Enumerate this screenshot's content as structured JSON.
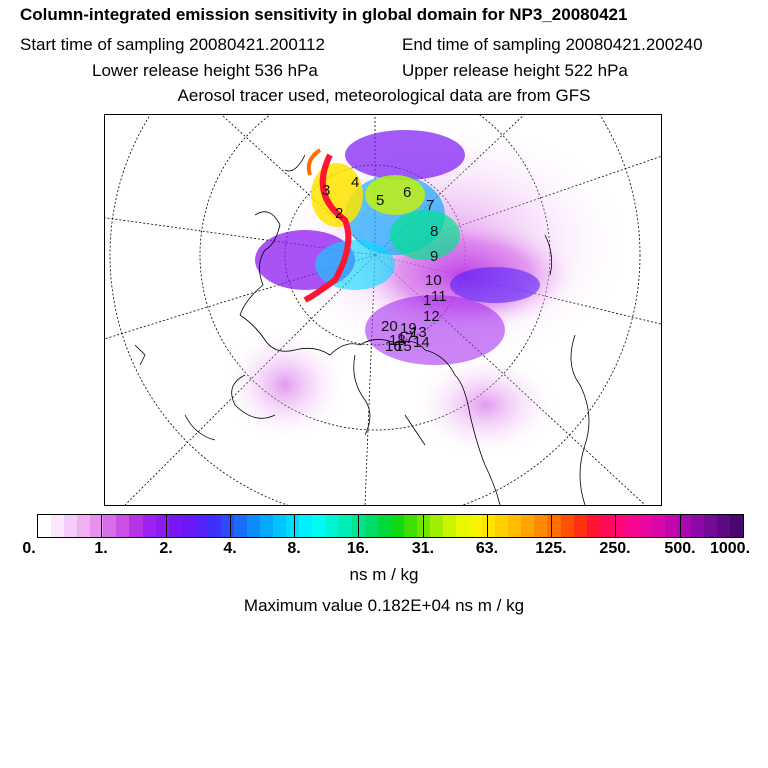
{
  "title": "Column-integrated emission sensitivity in global domain for NP3_20080421",
  "start_sampling": "Start time of sampling 20080421.200112",
  "end_sampling": "End time of sampling 20080421.200240",
  "lower_release": "Lower release height  536 hPa",
  "upper_release": "Upper release height  522 hPa",
  "tracer_note": "Aerosol tracer used, meteorological data are from GFS",
  "trajectory_labels": [
    "1",
    "2",
    "3",
    "4",
    "5",
    "6",
    "7",
    "8",
    "9",
    "10",
    "11",
    "12",
    "13",
    "14",
    "15",
    "16",
    "17",
    "18",
    "19",
    "20"
  ],
  "colorbar": {
    "tick_labels": [
      "0.",
      "1.",
      "2.",
      "4.",
      "8.",
      "16.",
      "31.",
      "63.",
      "125.",
      "250.",
      "500.",
      "1000."
    ],
    "colors": [
      "#ffffff",
      "#fbe6fb",
      "#f6ccf8",
      "#f0b0f4",
      "#e890ef",
      "#d66de9",
      "#c94fe6",
      "#b733e8",
      "#a020ef",
      "#8d1af2",
      "#7a16f4",
      "#6a18f6",
      "#5722f8",
      "#3d30fa",
      "#2a4cfc",
      "#1a6cfd",
      "#0c8cfe",
      "#06a8fe",
      "#00c4ff",
      "#00dcff",
      "#00f0ff",
      "#00fbf2",
      "#00f5d5",
      "#00edb5",
      "#00e48e",
      "#00dc66",
      "#00d83c",
      "#10d814",
      "#40df00",
      "#70e600",
      "#a0ee00",
      "#c8f400",
      "#e8f800",
      "#f8f400",
      "#ffe400",
      "#ffd000",
      "#ffbc00",
      "#ffa400",
      "#ff8a00",
      "#ff6e00",
      "#ff5000",
      "#ff3010",
      "#ff1434",
      "#ff0a56",
      "#ff0878",
      "#f80890",
      "#ea08a0",
      "#d808aa",
      "#c206b0",
      "#a808b0",
      "#8e0aa8",
      "#760a98",
      "#5e0a84",
      "#4a0870"
    ]
  },
  "unit": "ns m / kg",
  "max_value": "Maximum value  0.182E+04 ns m / kg"
}
